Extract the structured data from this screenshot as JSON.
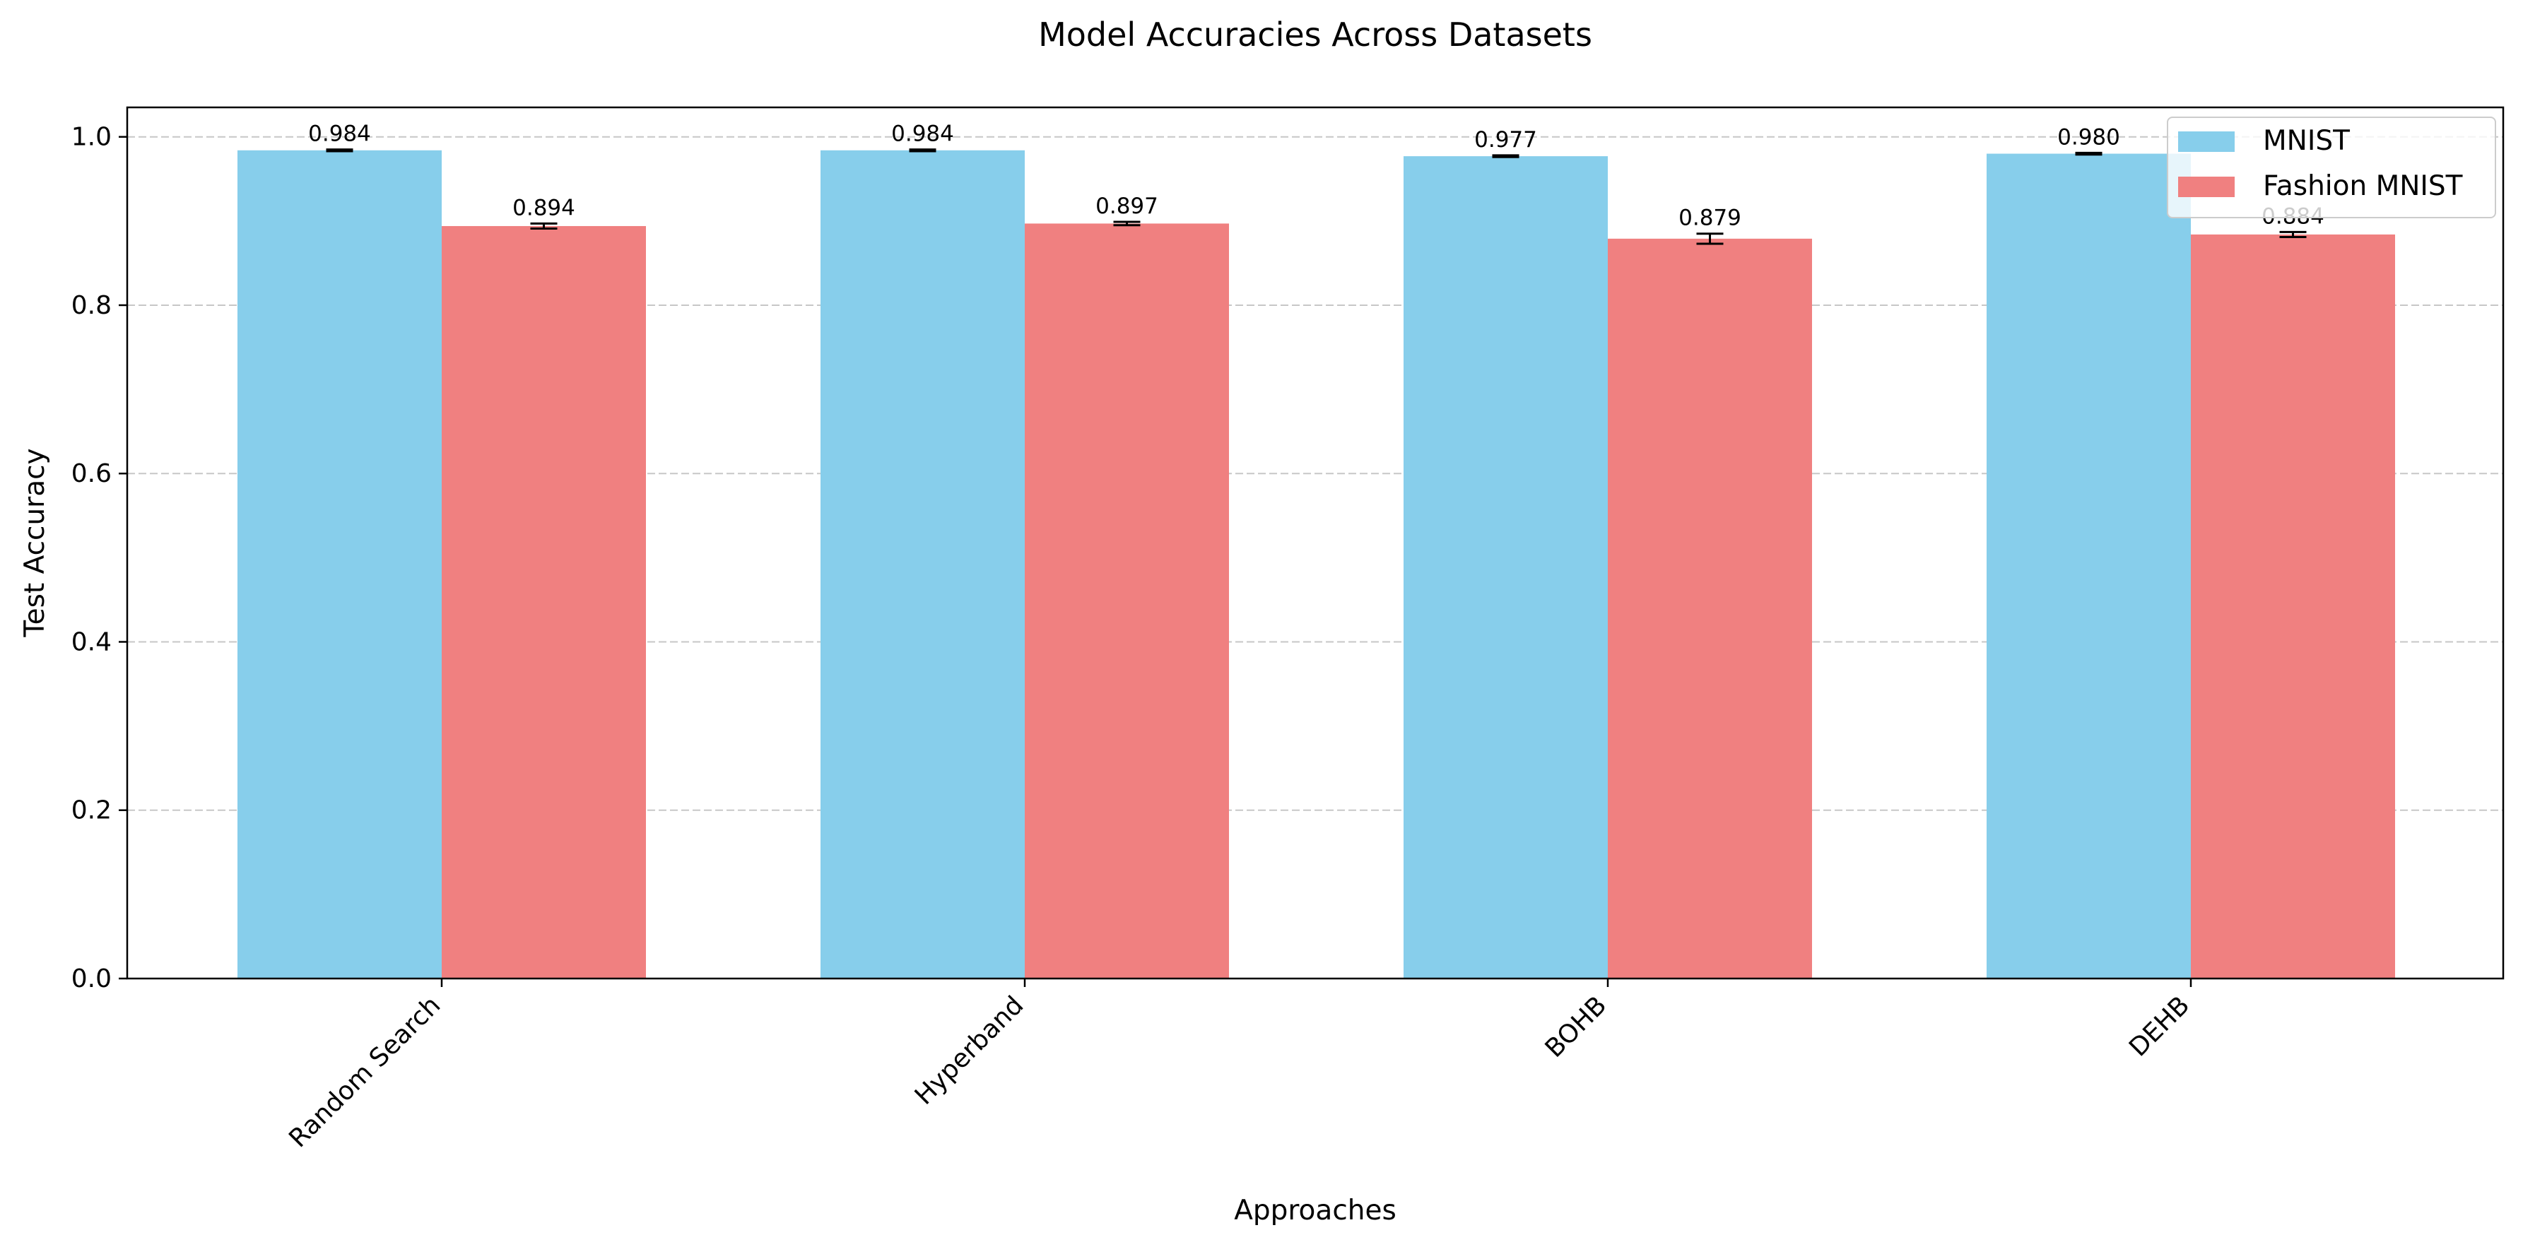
{
  "chart_data": {
    "type": "bar",
    "title": "Model Accuracies Across Datasets",
    "xlabel": "Approaches",
    "ylabel": "Test Accuracy",
    "categories": [
      "Random Search",
      "Hyperband",
      "BOHB",
      "DEHB"
    ],
    "series": [
      {
        "name": "MNIST",
        "color": "#87ceeb",
        "values": [
          0.984,
          0.984,
          0.977,
          0.98
        ],
        "errors": [
          0.001,
          0.001,
          0.001,
          0.001
        ],
        "labels": [
          "0.984",
          "0.984",
          "0.977",
          "0.980"
        ]
      },
      {
        "name": "Fashion MNIST",
        "color": "#f08080",
        "values": [
          0.894,
          0.897,
          0.879,
          0.884
        ],
        "errors": [
          0.003,
          0.002,
          0.006,
          0.003
        ],
        "labels": [
          "0.894",
          "0.897",
          "0.879",
          "0.884"
        ]
      }
    ],
    "ylim": [
      0,
      1.035
    ],
    "yticks": [
      "0.0",
      "0.2",
      "0.4",
      "0.6",
      "0.8",
      "1.0"
    ],
    "grid": "y-dashed",
    "legend_position": "top-right"
  }
}
